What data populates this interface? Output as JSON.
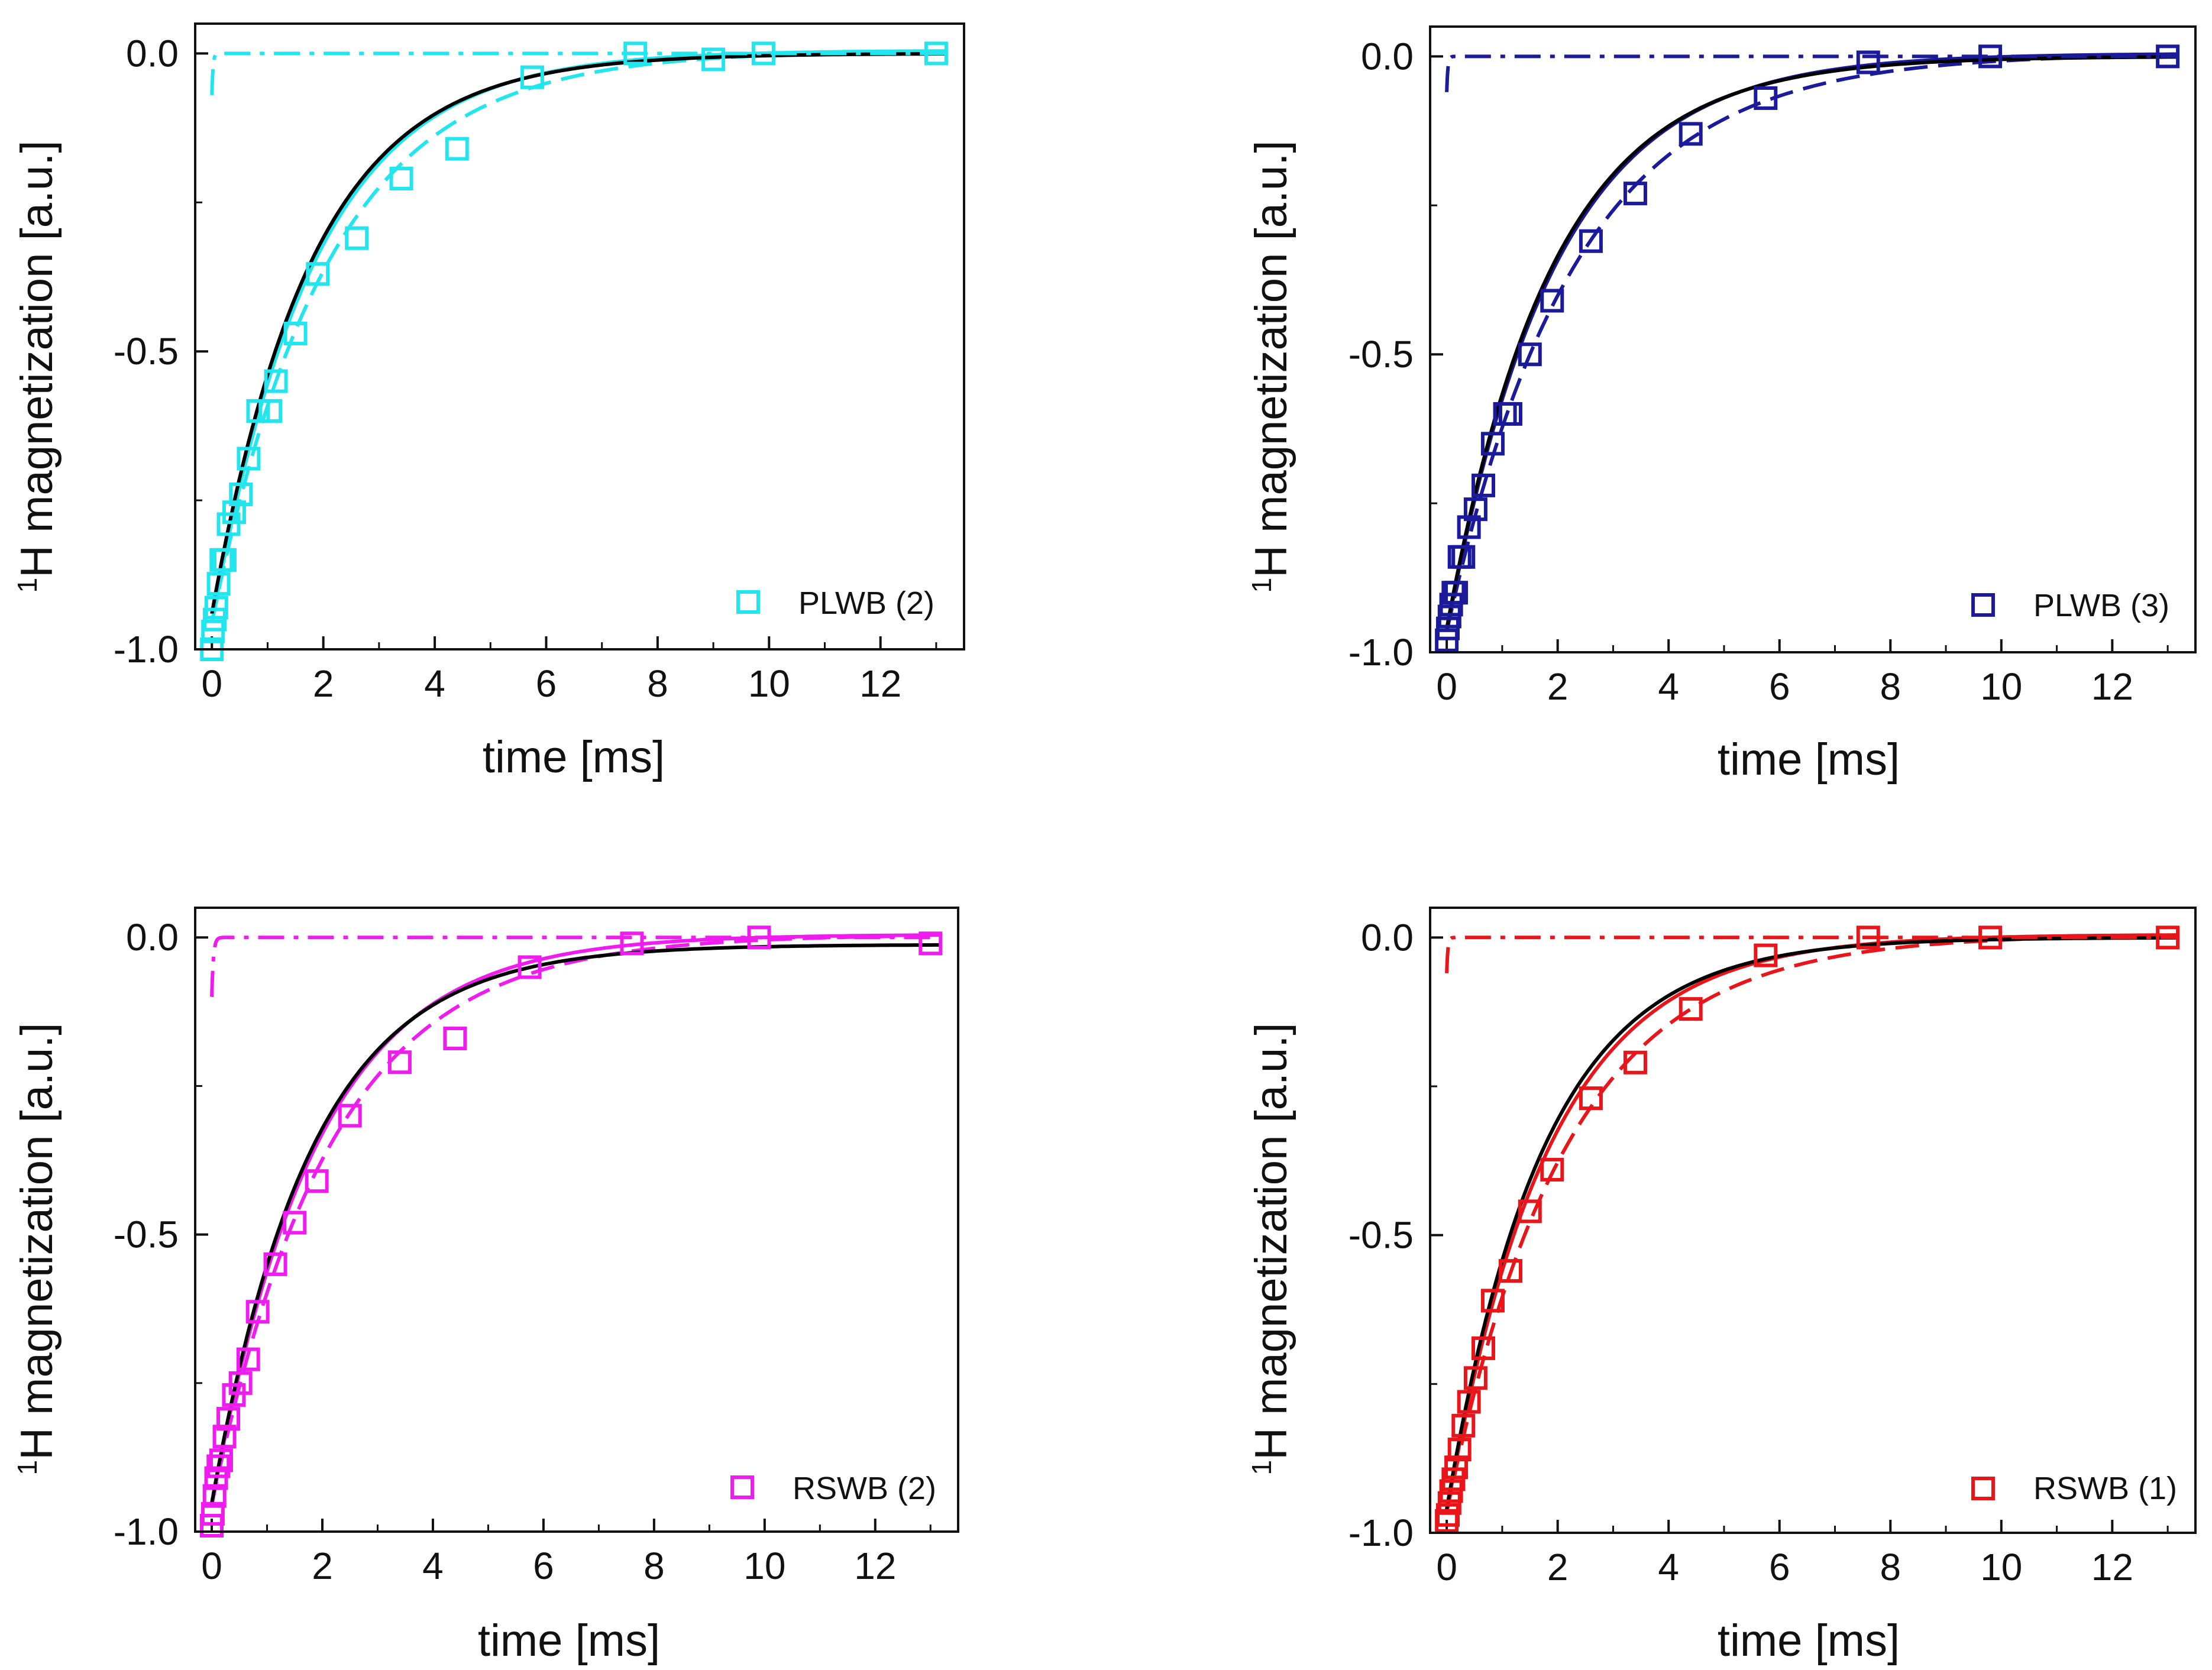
{
  "figure": {
    "panels": [
      {
        "id": "plwb2",
        "ylabel_sup": "1",
        "ylabel": "H magnetization [a.u.]",
        "xlabel": "time [ms]",
        "xticks": [
          "0",
          "2",
          "4",
          "6",
          "8",
          "10",
          "12"
        ],
        "yticks": [
          "0.0",
          "-0.5",
          "-1.0"
        ],
        "legend": "PLWB (2)",
        "color": "#22e5ee"
      },
      {
        "id": "plwb3",
        "ylabel_sup": "1",
        "ylabel": "H magnetization [a.u.]",
        "xlabel": "time [ms]",
        "xticks": [
          "0",
          "2",
          "4",
          "6",
          "8",
          "10",
          "12"
        ],
        "yticks": [
          "0.0",
          "-0.5",
          "-1.0"
        ],
        "legend": "PLWB (3)",
        "color": "#1a1a9a"
      },
      {
        "id": "rswb2",
        "ylabel_sup": "1",
        "ylabel": "H magnetization [a.u.]",
        "xlabel": "time [ms]",
        "xticks": [
          "0",
          "2",
          "4",
          "6",
          "8",
          "10",
          "12"
        ],
        "yticks": [
          "0.0",
          "-0.5",
          "-1.0"
        ],
        "legend": "RSWB (2)",
        "color": "#ee1cee"
      },
      {
        "id": "rswb1",
        "ylabel_sup": "1",
        "ylabel": "H magnetization [a.u.]",
        "xlabel": "time [ms]",
        "xticks": [
          "0",
          "2",
          "4",
          "6",
          "8",
          "10",
          "12"
        ],
        "yticks": [
          "0.0",
          "-0.5",
          "-1.0"
        ],
        "legend": "RSWB (1)",
        "color": "#e8161a"
      }
    ]
  },
  "chart_data": [
    {
      "type": "scatter",
      "title": "",
      "legend": "PLWB (2)",
      "xlabel": "time [ms]",
      "ylabel": "1H magnetization [a.u.]",
      "xlim": [
        -0.3,
        13.5
      ],
      "ylim": [
        -1.0,
        0.05
      ],
      "xticks": [
        0,
        2,
        4,
        6,
        8,
        10,
        12
      ],
      "yticks": [
        0.0,
        -0.5,
        -1.0
      ],
      "marker": "open-square",
      "series": [
        {
          "name": "PLWB (2)",
          "kind": "markers",
          "x": [
            0.0,
            0.02,
            0.05,
            0.08,
            0.12,
            0.17,
            0.23,
            0.3,
            0.4,
            0.52,
            0.66,
            0.83,
            1.05,
            1.15,
            1.5,
            1.9,
            2.6,
            3.4,
            4.4,
            5.75,
            7.6,
            9.0,
            9.9,
            13.0
          ],
          "y": [
            -1.0,
            -0.97,
            -0.95,
            -0.93,
            -0.89,
            -0.85,
            -0.85,
            -0.79,
            -0.77,
            -0.74,
            -0.68,
            -0.6,
            -0.6,
            -0.55,
            -0.47,
            -0.37,
            -0.31,
            -0.21,
            -0.16,
            -0.04,
            0.0,
            -0.01,
            0.0,
            0.0
          ]
        },
        {
          "name": "fit (solid)",
          "kind": "line",
          "style": "solid",
          "model": "exp",
          "A": -0.96,
          "T": 1.85,
          "C": 0.005
        },
        {
          "name": "fit (dashed)",
          "kind": "line",
          "style": "dashed",
          "model": "exp",
          "A": -0.96,
          "T": 2.1,
          "C": 0.005
        },
        {
          "name": "fast component",
          "kind": "line",
          "style": "dashdot",
          "model": "exp",
          "A": -0.07,
          "T": 0.02,
          "C": 0.0,
          "y_offset": 0.0
        },
        {
          "name": "black fit",
          "kind": "line",
          "style": "solid",
          "color": "#000000",
          "model": "exp",
          "A": -0.94,
          "T": 1.8,
          "C": 0.0
        }
      ]
    },
    {
      "type": "scatter",
      "title": "",
      "legend": "PLWB (3)",
      "xlabel": "time [ms]",
      "ylabel": "1H magnetization [a.u.]",
      "xlim": [
        -0.3,
        13.5
      ],
      "ylim": [
        -1.0,
        0.05
      ],
      "xticks": [
        0,
        2,
        4,
        6,
        8,
        10,
        12
      ],
      "yticks": [
        0.0,
        -0.5,
        -1.0
      ],
      "marker": "open-square",
      "series": [
        {
          "name": "PLWB (3)",
          "kind": "markers",
          "x": [
            0.0,
            0.02,
            0.05,
            0.08,
            0.12,
            0.17,
            0.23,
            0.3,
            0.4,
            0.52,
            0.66,
            0.83,
            1.05,
            1.15,
            1.5,
            1.9,
            2.6,
            3.4,
            4.4,
            5.75,
            7.6,
            9.8,
            13.0
          ],
          "y": [
            -0.98,
            -0.96,
            -0.94,
            -0.92,
            -0.9,
            -0.9,
            -0.84,
            -0.84,
            -0.79,
            -0.76,
            -0.72,
            -0.65,
            -0.6,
            -0.6,
            -0.5,
            -0.41,
            -0.31,
            -0.23,
            -0.13,
            -0.07,
            -0.01,
            0.0,
            0.0
          ]
        },
        {
          "name": "fit (solid)",
          "kind": "line",
          "style": "solid",
          "model": "exp",
          "A": -0.97,
          "T": 1.95,
          "C": 0.005
        },
        {
          "name": "fit (dashed)",
          "kind": "line",
          "style": "dashed",
          "model": "exp",
          "A": -0.97,
          "T": 2.3,
          "C": 0.005
        },
        {
          "name": "fast component",
          "kind": "line",
          "style": "dashdot",
          "model": "exp",
          "A": -0.06,
          "T": 0.02,
          "C": 0.0
        },
        {
          "name": "black fit",
          "kind": "line",
          "style": "solid",
          "color": "#000000",
          "model": "exp",
          "A": -0.96,
          "T": 1.9,
          "C": 0.0
        }
      ]
    },
    {
      "type": "scatter",
      "title": "",
      "legend": "RSWB (2)",
      "xlabel": "time [ms]",
      "ylabel": "1H magnetization [a.u.]",
      "xlim": [
        -0.3,
        13.5
      ],
      "ylim": [
        -1.0,
        0.05
      ],
      "xticks": [
        0,
        2,
        4,
        6,
        8,
        10,
        12
      ],
      "yticks": [
        0.0,
        -0.5,
        -1.0
      ],
      "marker": "open-square",
      "series": [
        {
          "name": "RSWB (2)",
          "kind": "markers",
          "x": [
            0.0,
            0.02,
            0.05,
            0.08,
            0.12,
            0.17,
            0.23,
            0.3,
            0.4,
            0.52,
            0.66,
            0.83,
            1.15,
            1.5,
            1.9,
            2.5,
            3.4,
            4.4,
            5.75,
            7.6,
            9.9,
            13.0
          ],
          "y": [
            -0.99,
            -0.97,
            -0.94,
            -0.91,
            -0.89,
            -0.88,
            -0.84,
            -0.81,
            -0.77,
            -0.75,
            -0.71,
            -0.63,
            -0.55,
            -0.48,
            -0.41,
            -0.3,
            -0.21,
            -0.17,
            -0.05,
            -0.01,
            0.0,
            -0.01
          ]
        },
        {
          "name": "fit (solid)",
          "kind": "line",
          "style": "solid",
          "model": "exp",
          "A": -0.96,
          "T": 1.9,
          "C": 0.005
        },
        {
          "name": "fit (dashed)",
          "kind": "line",
          "style": "dashed",
          "model": "exp",
          "A": -0.96,
          "T": 2.15,
          "C": 0.005
        },
        {
          "name": "fast component",
          "kind": "line",
          "style": "dashdot",
          "model": "exp",
          "A": -0.1,
          "T": 0.03,
          "C": 0.0
        },
        {
          "name": "black fit",
          "kind": "line",
          "style": "solid",
          "color": "#000000",
          "model": "exp",
          "A": -0.94,
          "T": 1.8,
          "C": -0.012
        }
      ]
    },
    {
      "type": "scatter",
      "title": "",
      "legend": "RSWB (1)",
      "xlabel": "time [ms]",
      "ylabel": "1H magnetization [a.u.]",
      "xlim": [
        -0.3,
        13.5
      ],
      "ylim": [
        -1.0,
        0.05
      ],
      "xticks": [
        0,
        2,
        4,
        6,
        8,
        10,
        12
      ],
      "yticks": [
        0.0,
        -0.5,
        -1.0
      ],
      "marker": "open-square",
      "series": [
        {
          "name": "RSWB (1)",
          "kind": "markers",
          "x": [
            0.0,
            0.02,
            0.05,
            0.08,
            0.12,
            0.17,
            0.23,
            0.3,
            0.4,
            0.52,
            0.66,
            0.83,
            1.15,
            1.5,
            1.9,
            2.6,
            3.4,
            4.4,
            5.75,
            7.6,
            9.8,
            13.0
          ],
          "y": [
            -0.98,
            -0.97,
            -0.95,
            -0.93,
            -0.91,
            -0.89,
            -0.86,
            -0.82,
            -0.78,
            -0.74,
            -0.69,
            -0.61,
            -0.56,
            -0.46,
            -0.39,
            -0.27,
            -0.21,
            -0.12,
            -0.03,
            0.0,
            0.0,
            0.0
          ]
        },
        {
          "name": "fit (solid)",
          "kind": "line",
          "style": "solid",
          "model": "exp",
          "A": -0.97,
          "T": 1.85,
          "C": 0.005
        },
        {
          "name": "fit (dashed)",
          "kind": "line",
          "style": "dashed",
          "model": "exp",
          "A": -0.97,
          "T": 2.15,
          "C": 0.005
        },
        {
          "name": "fast component",
          "kind": "line",
          "style": "dashdot",
          "model": "exp",
          "A": -0.06,
          "T": 0.02,
          "C": 0.0
        },
        {
          "name": "black fit",
          "kind": "line",
          "style": "solid",
          "color": "#000000",
          "model": "exp",
          "A": -0.96,
          "T": 1.75,
          "C": 0.0
        }
      ]
    }
  ]
}
